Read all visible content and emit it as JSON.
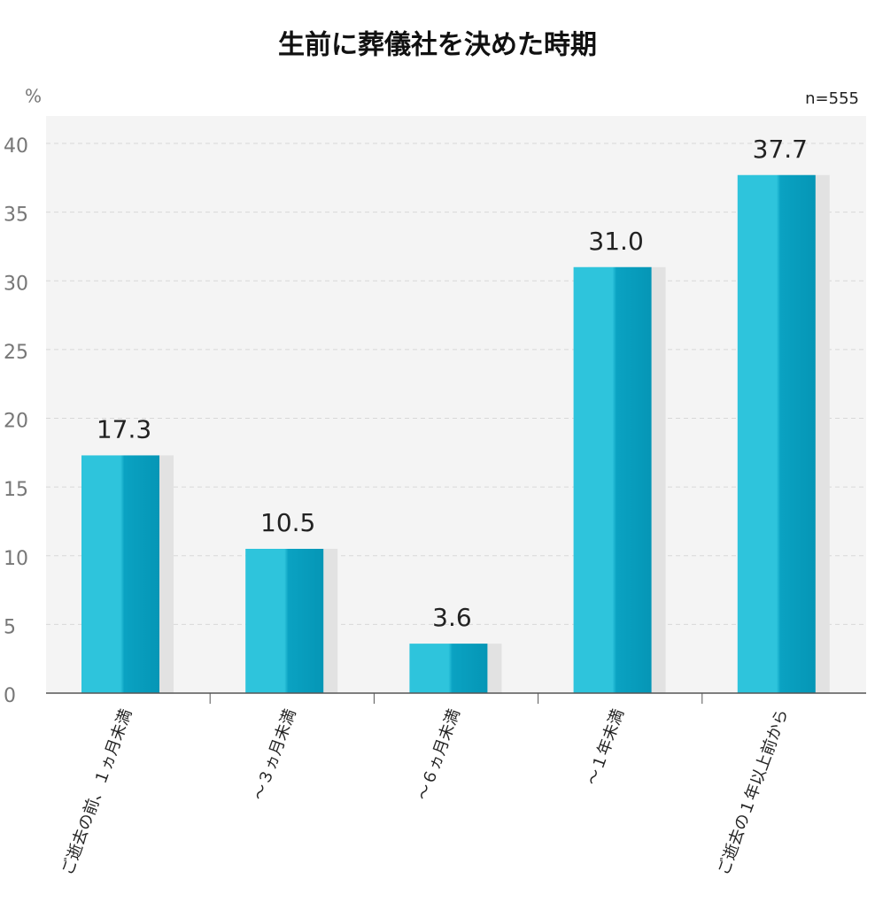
{
  "chart_data": {
    "type": "bar",
    "title": "生前に葬儀社を決めた時期",
    "y_unit": "%",
    "note": "n=555",
    "categories": [
      "ご逝去の前、１ヵ月未満",
      "～３ヵ月未満",
      "～６ヵ月未満",
      "～１年未満",
      "ご逝去の１年以上前から"
    ],
    "values": [
      17.3,
      10.5,
      3.6,
      31.0,
      37.7
    ],
    "value_labels": [
      "17.3",
      "10.5",
      "3.6",
      "31.0",
      "37.7"
    ],
    "color": "#2ec4dc",
    "ylim": [
      0,
      42
    ],
    "yticks": [
      0,
      5,
      10,
      15,
      20,
      25,
      30,
      35,
      40
    ],
    "grid": true
  }
}
